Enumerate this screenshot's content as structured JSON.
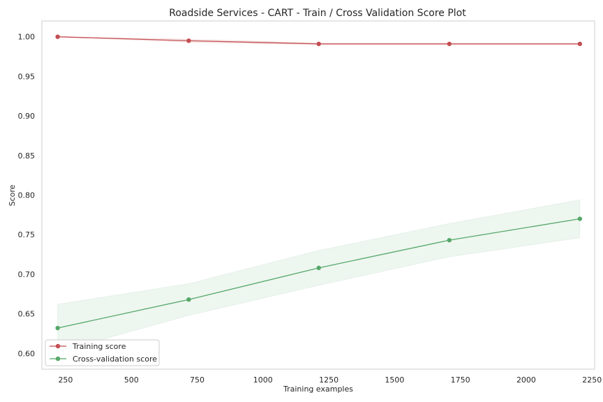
{
  "chart_data": {
    "type": "line",
    "title": "Roadside Services - CART - Train / Cross Validation Score Plot",
    "xlabel": "Training examples",
    "ylabel": "Score",
    "xlim": [
      160,
      2260
    ],
    "ylim": [
      0.58,
      1.02
    ],
    "xticks": [
      250,
      500,
      750,
      1000,
      1250,
      1500,
      1750,
      2000,
      2250
    ],
    "xtick_labels": [
      "250",
      "500",
      "750",
      "1000",
      "1250",
      "1500",
      "1750",
      "2000",
      "2250"
    ],
    "yticks": [
      0.6,
      0.65,
      0.7,
      0.75,
      0.8,
      0.85,
      0.9,
      0.95,
      1.0
    ],
    "ytick_labels": [
      "0.60",
      "0.65",
      "0.70",
      "0.75",
      "0.80",
      "0.85",
      "0.90",
      "0.95",
      "1.00"
    ],
    "grid": false,
    "legend_position": "lower-left",
    "x": [
      220,
      718,
      1212,
      1708,
      2204
    ],
    "series": [
      {
        "name": "Training score",
        "color": "#c44e52",
        "values": [
          1.0,
          0.995,
          0.991,
          0.991,
          0.991
        ],
        "lower": [
          1.0,
          0.993,
          0.99,
          0.99,
          0.99
        ],
        "upper": [
          1.0,
          0.997,
          0.992,
          0.992,
          0.992
        ]
      },
      {
        "name": "Cross-validation score",
        "color": "#55a868",
        "values": [
          0.632,
          0.668,
          0.708,
          0.743,
          0.77
        ],
        "lower": [
          0.602,
          0.648,
          0.686,
          0.722,
          0.746
        ],
        "upper": [
          0.662,
          0.688,
          0.73,
          0.764,
          0.794
        ]
      }
    ]
  }
}
